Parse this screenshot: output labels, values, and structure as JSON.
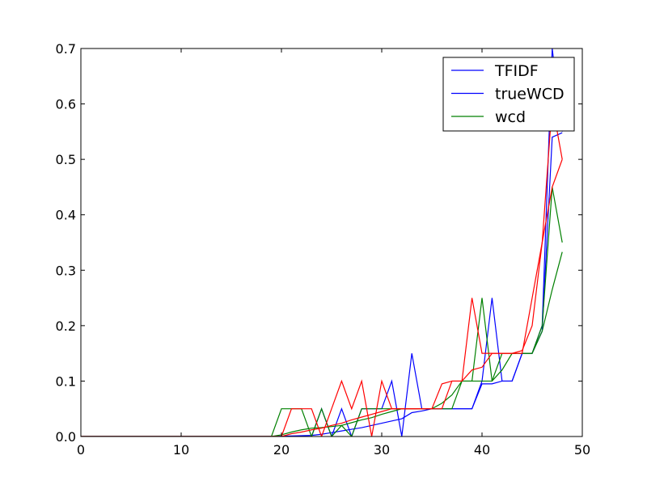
{
  "chart_data": {
    "type": "line",
    "title": "",
    "xlabel": "",
    "ylabel": "",
    "xlim": [
      0,
      50
    ],
    "ylim": [
      0,
      0.7
    ],
    "xticks": [
      0,
      10,
      20,
      30,
      40,
      50
    ],
    "yticks": [
      0.0,
      0.1,
      0.2,
      0.3,
      0.4,
      0.5,
      0.6,
      0.7
    ],
    "xtick_labels": [
      "0",
      "10",
      "20",
      "30",
      "40",
      "50"
    ],
    "ytick_labels": [
      "0.0",
      "0.1",
      "0.2",
      "0.3",
      "0.4",
      "0.5",
      "0.6",
      "0.7"
    ],
    "grid": false,
    "legend_position": "top-right",
    "legend": [
      {
        "label": "TFIDF",
        "color": "#0000ff"
      },
      {
        "label": "trueWCD",
        "color": "#0000ff"
      },
      {
        "label": "wcd",
        "color": "#008000"
      }
    ],
    "series": [
      {
        "color": "#0000ff",
        "x": [
          0,
          19,
          22,
          23,
          24,
          25,
          26,
          27,
          28,
          29,
          30,
          31,
          32,
          33,
          34,
          35,
          36,
          37,
          38,
          39,
          40,
          41,
          42,
          43,
          44,
          45,
          46,
          47,
          48
        ],
        "y": [
          0,
          0,
          0,
          0,
          0.05,
          0,
          0.05,
          0,
          0.05,
          0.05,
          0.05,
          0.1,
          0,
          0.15,
          0.05,
          0.05,
          0.05,
          0.05,
          0.05,
          0.05,
          0.1,
          0.25,
          0.1,
          0.1,
          0.15,
          0.15,
          0.2,
          0.7,
          0.55
        ]
      },
      {
        "color": "#0000ff",
        "x": [
          0,
          19,
          23,
          24,
          25,
          26,
          27,
          28,
          29,
          30,
          31,
          32,
          33,
          34,
          35,
          36,
          37,
          38,
          39,
          40,
          41,
          42,
          43,
          44,
          45,
          46,
          47,
          48
        ],
        "y": [
          0,
          0,
          0.002,
          0.004,
          0.007,
          0.01,
          0.013,
          0.016,
          0.02,
          0.024,
          0.028,
          0.032,
          0.043,
          0.046,
          0.05,
          0.05,
          0.05,
          0.05,
          0.05,
          0.095,
          0.095,
          0.1,
          0.1,
          0.15,
          0.15,
          0.19,
          0.54,
          0.548
        ]
      },
      {
        "color": "#008000",
        "x": [
          0,
          19,
          20,
          21,
          22,
          23,
          24,
          25,
          26,
          27,
          28,
          29,
          30,
          31,
          32,
          33,
          34,
          35,
          36,
          37,
          38,
          39,
          40,
          41,
          42,
          43,
          44,
          45,
          46,
          47,
          48
        ],
        "y": [
          0,
          0,
          0.05,
          0.05,
          0.05,
          0,
          0.05,
          0,
          0.02,
          0,
          0.05,
          0.05,
          0.05,
          0.05,
          0.05,
          0.05,
          0.05,
          0.05,
          0.05,
          0.05,
          0.1,
          0.1,
          0.25,
          0.1,
          0.15,
          0.15,
          0.15,
          0.15,
          0.2,
          0.45,
          0.35
        ]
      },
      {
        "color": "#008000",
        "x": [
          0,
          19,
          20,
          21,
          22,
          23,
          24,
          25,
          26,
          27,
          28,
          29,
          30,
          31,
          32,
          33,
          34,
          35,
          36,
          37,
          38,
          39,
          40,
          41,
          42,
          43,
          44,
          45,
          46,
          47,
          48
        ],
        "y": [
          0,
          0,
          0.003,
          0.008,
          0.012,
          0.015,
          0.016,
          0.018,
          0.02,
          0.025,
          0.03,
          0.034,
          0.04,
          0.045,
          0.05,
          0.05,
          0.05,
          0.05,
          0.06,
          0.075,
          0.1,
          0.1,
          0.1,
          0.1,
          0.12,
          0.15,
          0.15,
          0.15,
          0.19,
          0.265,
          0.333
        ]
      },
      {
        "color": "#ff0000",
        "x": [
          0,
          20,
          21,
          22,
          23,
          24,
          25,
          26,
          27,
          28,
          29,
          30,
          31,
          32,
          33,
          34,
          35,
          36,
          37,
          38,
          39,
          40,
          41,
          42,
          43,
          44,
          45,
          46,
          47,
          48
        ],
        "y": [
          0,
          0,
          0.05,
          0.05,
          0.05,
          0,
          0.05,
          0.1,
          0.05,
          0.1,
          0,
          0.1,
          0.05,
          0.05,
          0.05,
          0.05,
          0.05,
          0.05,
          0.1,
          0.1,
          0.25,
          0.15,
          0.15,
          0.15,
          0.15,
          0.15,
          0.25,
          0.35,
          0.6,
          0.5
        ]
      },
      {
        "color": "#ff0000",
        "x": [
          0,
          20,
          21,
          22,
          23,
          24,
          25,
          26,
          27,
          28,
          29,
          30,
          31,
          32,
          33,
          34,
          35,
          36,
          37,
          38,
          39,
          40,
          41,
          42,
          43,
          44,
          45,
          46,
          47,
          48
        ],
        "y": [
          0,
          0,
          0.005,
          0.008,
          0.012,
          0.015,
          0.02,
          0.024,
          0.03,
          0.035,
          0.04,
          0.045,
          0.05,
          0.05,
          0.05,
          0.05,
          0.05,
          0.095,
          0.1,
          0.1,
          0.12,
          0.125,
          0.15,
          0.15,
          0.15,
          0.155,
          0.2,
          0.35,
          0.45,
          0.5
        ]
      }
    ]
  }
}
